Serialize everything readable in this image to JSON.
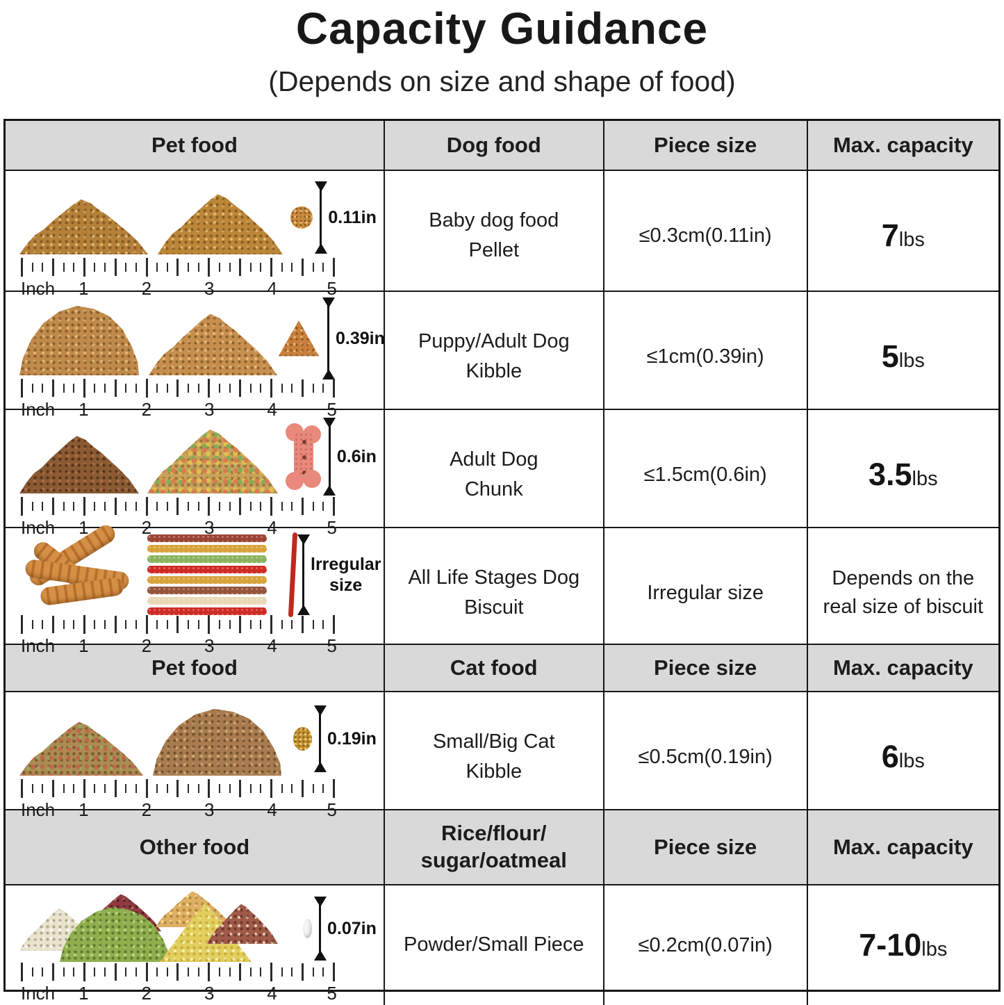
{
  "page": {
    "title": "Capacity Guidance",
    "subtitle": "(Depends on size and shape of food)"
  },
  "ruler": {
    "unit_label": "Inch",
    "marks": [
      "1",
      "2",
      "3",
      "4",
      "5"
    ]
  },
  "sections": [
    {
      "header": {
        "pet": "Pet food",
        "food": "Dog food",
        "size": "Piece size",
        "capacity": "Max. capacity"
      },
      "rows": [
        {
          "name1": "Baby dog food",
          "name2": "Pellet",
          "size": "≤0.3cm(0.11in)",
          "cap": "7",
          "unit": "lbs",
          "measure": "0.11in"
        },
        {
          "name1": "Puppy/Adult Dog",
          "name2": "Kibble",
          "size": "≤1cm(0.39in)",
          "cap": "5",
          "unit": "lbs",
          "measure": "0.39in"
        },
        {
          "name1": "Adult Dog",
          "name2": "Chunk",
          "size": "≤1.5cm(0.6in)",
          "cap": "3.5",
          "unit": "lbs",
          "measure": "0.6in"
        },
        {
          "name1": "All Life Stages Dog",
          "name2": "Biscuit",
          "size": "Irregular size",
          "cap1": "Depends on the",
          "cap2": "real size of biscuit",
          "measure1": "lrregular",
          "measure2": "size"
        }
      ]
    },
    {
      "header": {
        "pet": "Pet food",
        "food": "Cat food",
        "size": "Piece size",
        "capacity": "Max. capacity"
      },
      "rows": [
        {
          "name1": "Small/Big Cat",
          "name2": "Kibble",
          "size": "≤0.5cm(0.19in)",
          "cap": "6",
          "unit": "lbs",
          "measure": "0.19in"
        }
      ]
    },
    {
      "header": {
        "pet": "Other food",
        "food1": "Rice/flour/",
        "food2": "sugar/oatmeal",
        "size": "Piece size",
        "capacity": "Max. capacity"
      },
      "rows": [
        {
          "name1": "Powder/Small Piece",
          "size": "≤0.2cm(0.07in)",
          "cap": "7-10",
          "unit": "lbs",
          "measure": "0.07in"
        }
      ]
    }
  ]
}
